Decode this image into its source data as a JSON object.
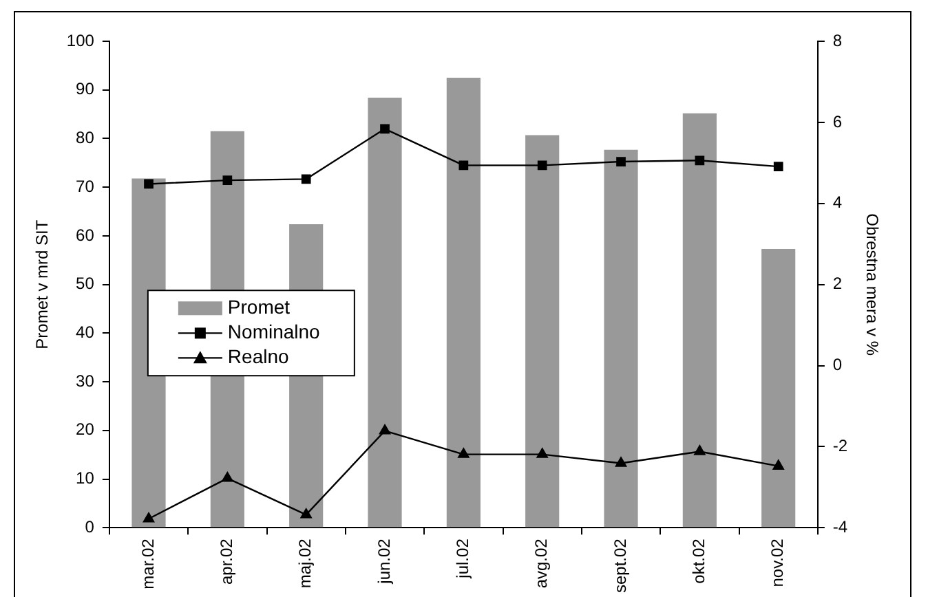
{
  "chart_data": {
    "type": "bar",
    "categories": [
      "mar.02",
      "apr.02",
      "maj.02",
      "jun.02",
      "jul.02",
      "avg.02",
      "sept.02",
      "okt.02",
      "nov.02"
    ],
    "ylabel": "Promet v mrd SIT",
    "y2label": "Obrestna mera v %",
    "ylim": [
      0,
      100
    ],
    "yticks": [
      0,
      10,
      20,
      30,
      40,
      50,
      60,
      70,
      80,
      90,
      100
    ],
    "y2lim": [
      -4,
      8
    ],
    "y2ticks": [
      -4,
      -2,
      0,
      2,
      4,
      6,
      8
    ],
    "grid": false,
    "legend": "left",
    "series": [
      {
        "name": "Promet",
        "color": "#999999",
        "values": [
          71.8,
          81.5,
          62.4,
          88.4,
          92.5,
          80.7,
          77.7,
          85.2,
          57.3
        ]
      },
      {
        "name": "Nominalno",
        "type": "line",
        "axis": "y2",
        "marker": "square",
        "color": "#000000",
        "values": [
          4.48,
          4.57,
          4.6,
          5.84,
          4.94,
          4.94,
          5.03,
          5.06,
          4.91
        ]
      },
      {
        "name": "Realno",
        "type": "line",
        "axis": "y2",
        "marker": "triangle",
        "color": "#000000",
        "values": [
          -3.78,
          -2.78,
          -3.68,
          -1.61,
          -2.19,
          -2.19,
          -2.41,
          -2.12,
          -2.48
        ]
      }
    ]
  }
}
